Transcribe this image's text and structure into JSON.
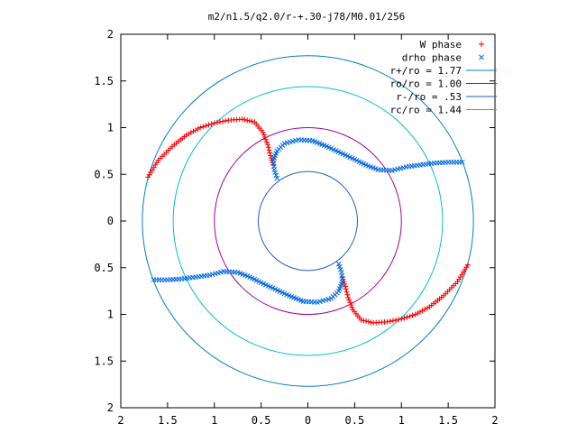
{
  "chart_data": {
    "type": "scatter",
    "title": "m2/n1.5/q2.0/r-+.30-j78/M0.01/256",
    "xlabel": "",
    "ylabel": "",
    "xlim": [
      -2,
      2
    ],
    "ylim": [
      -2,
      2
    ],
    "x_tick_labels": [
      "2",
      "1.5",
      "1",
      "0.5",
      "0",
      "0.5",
      "1",
      "1.5",
      "2"
    ],
    "y_tick_labels": [
      "2",
      "1.5",
      "1",
      "0.5",
      "0",
      "0.5",
      "1",
      "1.5",
      "2"
    ],
    "grid": false,
    "legend_position": "top-right",
    "series": [
      {
        "name": "W phase",
        "marker": "plus",
        "color": "#ff0000",
        "arms": [
          [
            [
              -1.71,
              0.47
            ],
            [
              -1.6,
              0.65
            ],
            [
              -1.45,
              0.8
            ],
            [
              -1.3,
              0.92
            ],
            [
              -1.15,
              1.0
            ],
            [
              -1.0,
              1.05
            ],
            [
              -0.85,
              1.08
            ],
            [
              -0.7,
              1.09
            ],
            [
              -0.57,
              1.06
            ],
            [
              -0.48,
              0.95
            ],
            [
              -0.43,
              0.82
            ],
            [
              -0.4,
              0.7
            ],
            [
              -0.37,
              0.6
            ]
          ],
          [
            [
              1.71,
              -0.47
            ],
            [
              1.6,
              -0.65
            ],
            [
              1.45,
              -0.8
            ],
            [
              1.3,
              -0.92
            ],
            [
              1.15,
              -1.0
            ],
            [
              1.0,
              -1.05
            ],
            [
              0.85,
              -1.08
            ],
            [
              0.7,
              -1.09
            ],
            [
              0.57,
              -1.06
            ],
            [
              0.48,
              -0.95
            ],
            [
              0.43,
              -0.82
            ],
            [
              0.4,
              -0.7
            ],
            [
              0.37,
              -0.6
            ]
          ]
        ]
      },
      {
        "name": "drho phase",
        "marker": "x",
        "color": "#0066dd",
        "arms": [
          [
            [
              -0.33,
              0.46
            ],
            [
              -0.36,
              0.55
            ],
            [
              -0.37,
              0.65
            ],
            [
              -0.33,
              0.75
            ],
            [
              -0.25,
              0.83
            ],
            [
              -0.1,
              0.87
            ],
            [
              0.05,
              0.86
            ],
            [
              0.2,
              0.8
            ],
            [
              0.35,
              0.73
            ],
            [
              0.5,
              0.66
            ],
            [
              0.62,
              0.6
            ],
            [
              0.75,
              0.55
            ],
            [
              0.9,
              0.54
            ],
            [
              1.05,
              0.58
            ],
            [
              1.2,
              0.6
            ],
            [
              1.35,
              0.62
            ],
            [
              1.5,
              0.63
            ],
            [
              1.65,
              0.63
            ]
          ],
          [
            [
              0.33,
              -0.46
            ],
            [
              0.36,
              -0.55
            ],
            [
              0.37,
              -0.65
            ],
            [
              0.33,
              -0.75
            ],
            [
              0.25,
              -0.83
            ],
            [
              0.1,
              -0.87
            ],
            [
              -0.05,
              -0.86
            ],
            [
              -0.2,
              -0.8
            ],
            [
              -0.35,
              -0.73
            ],
            [
              -0.5,
              -0.66
            ],
            [
              -0.62,
              -0.6
            ],
            [
              -0.75,
              -0.55
            ],
            [
              -0.9,
              -0.54
            ],
            [
              -1.05,
              -0.58
            ],
            [
              -1.2,
              -0.6
            ],
            [
              -1.35,
              -0.62
            ],
            [
              -1.5,
              -0.63
            ],
            [
              -1.65,
              -0.63
            ]
          ]
        ]
      }
    ],
    "circles": [
      {
        "label": "r+/ro = 1.77",
        "radius": 1.77,
        "color": "#0080c0"
      },
      {
        "label": "ro/ro = 1.00",
        "radius": 1.0,
        "color": "#a000a0"
      },
      {
        "label": "r-/ro = .53",
        "radius": 0.53,
        "color": "#2060c0"
      },
      {
        "label": "rc/ro = 1.44",
        "radius": 1.44,
        "color": "#00c0d0"
      }
    ]
  }
}
